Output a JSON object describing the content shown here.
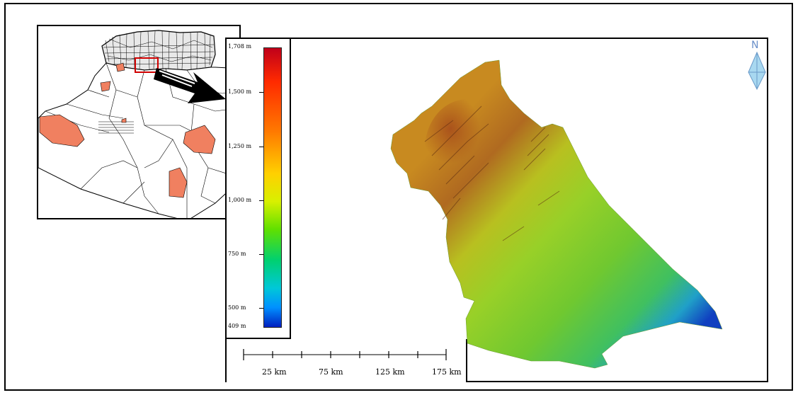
{
  "legend": {
    "max_label": "1,708 m",
    "ticks": [
      {
        "label": "1,500 m",
        "value": 1500
      },
      {
        "label": "1,250 m",
        "value": 1250
      },
      {
        "label": "1,000 m",
        "value": 1000
      },
      {
        "label": "750 m",
        "value": 750
      },
      {
        "label": "500 m",
        "value": 500
      }
    ],
    "min_label": "409 m",
    "max_value": 1708,
    "min_value": 409,
    "ramp_colors": [
      "#c0001a",
      "#ff7a00",
      "#ffd000",
      "#60e000",
      "#00c8d8",
      "#0020c0"
    ]
  },
  "scale_bar": {
    "labels": [
      "25 km",
      "75 km",
      "125 km",
      "175 km"
    ]
  },
  "north_arrow": {
    "letter": "N",
    "icon": "north-arrow-icon"
  },
  "colors": {
    "highlight_region": "#f08060",
    "locator_box": "#d00000",
    "arrow": "#000000"
  }
}
